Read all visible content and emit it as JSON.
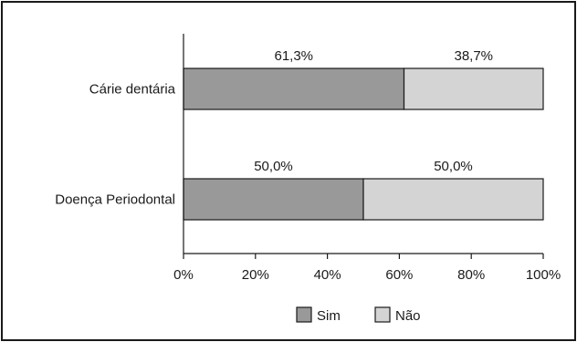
{
  "chart_data": {
    "type": "bar",
    "orientation": "horizontal",
    "stacked": true,
    "categories": [
      "Cárie dentária",
      "Doença Periodontal"
    ],
    "series": [
      {
        "name": "Sim",
        "values": [
          61.3,
          50.0
        ],
        "labels": [
          "61,3%",
          "50,0%"
        ],
        "color": "#999999"
      },
      {
        "name": "Não",
        "values": [
          38.7,
          50.0
        ],
        "labels": [
          "38,7%",
          "50,0%"
        ],
        "color": "#d4d4d4"
      }
    ],
    "xlim": [
      0,
      100
    ],
    "xticks": [
      "0%",
      "20%",
      "40%",
      "60%",
      "80%",
      "100%"
    ],
    "grid": false,
    "legend_position": "bottom-center"
  }
}
